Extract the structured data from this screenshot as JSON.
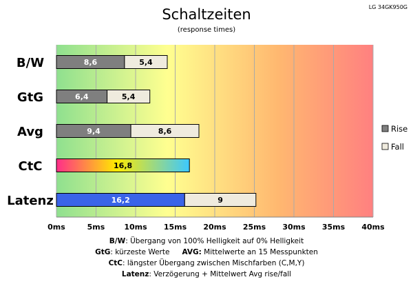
{
  "chart_data": {
    "type": "bar",
    "orientation": "horizontal",
    "stacked": true,
    "title": "Schaltzeiten",
    "subtitle": "(response times)",
    "model_label": "LG 34GK950G",
    "categories": [
      "B/W",
      "GtG",
      "Avg",
      "CtC",
      "Latenz"
    ],
    "series": [
      {
        "name": "Rise",
        "values": [
          8.6,
          6.4,
          9.4,
          16.8,
          16.2
        ],
        "labels": [
          "8,6",
          "6,4",
          "9,4",
          "16,8",
          "16,2"
        ]
      },
      {
        "name": "Fall",
        "values": [
          5.4,
          5.4,
          8.6,
          null,
          9
        ],
        "labels": [
          "5,4",
          "5,4",
          "8,6",
          "",
          "9"
        ]
      }
    ],
    "x_ticks": [
      "0ms",
      "5ms",
      "10ms",
      "15ms",
      "20ms",
      "25ms",
      "30ms",
      "35ms",
      "40ms"
    ],
    "xlim": [
      0,
      40
    ],
    "x_unit": "ms",
    "grid": "vertical",
    "background": "gradient green-yellow-orange-red",
    "legend_position": "right",
    "colors": {
      "rise": "#7f7f7f",
      "fall": "#efebde",
      "ctc_gradient": [
        "#ff2d8a",
        "#ffea00",
        "#3cc8ff"
      ],
      "latenz_rise": "#3a64e8",
      "bg_gradient": [
        "#8fe08f",
        "#ffff90",
        "#ffb870",
        "#ff8080"
      ]
    }
  },
  "footnotes": {
    "bw_key": "B/W",
    "bw_text": ":  Übergang von 100% Helligkeit auf 0% Helligkeit",
    "gtg_key": "GtG",
    "gtg_text": ": kürzeste  Werte",
    "avg_key": "AVG:",
    "avg_text": " Mittelwerte  an 15 Messpunkten",
    "ctc_key": "CtC",
    "ctc_text": ": längster Übergang  zwischen Mischfarben  (C,M,Y)",
    "latenz_key": "Latenz",
    "latenz_text": ": Verzögerung  + Mittelwert  Avg rise/fall"
  }
}
